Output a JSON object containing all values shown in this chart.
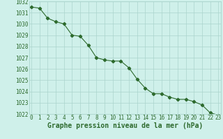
{
  "x": [
    0,
    1,
    2,
    3,
    4,
    5,
    6,
    7,
    8,
    9,
    10,
    11,
    12,
    13,
    14,
    15,
    16,
    17,
    18,
    19,
    20,
    21,
    22,
    23
  ],
  "y": [
    1031.5,
    1031.4,
    1030.5,
    1030.2,
    1030.0,
    1029.0,
    1028.9,
    1028.1,
    1027.0,
    1026.8,
    1026.7,
    1026.7,
    1026.1,
    1025.1,
    1024.3,
    1023.8,
    1023.8,
    1023.5,
    1023.3,
    1023.3,
    1023.1,
    1022.8,
    1022.1,
    1021.9
  ],
  "ylim": [
    1022,
    1032
  ],
  "xlim": [
    -0.3,
    23.3
  ],
  "yticks": [
    1022,
    1023,
    1024,
    1025,
    1026,
    1027,
    1028,
    1029,
    1030,
    1031,
    1032
  ],
  "xticks": [
    0,
    1,
    2,
    3,
    4,
    5,
    6,
    7,
    8,
    9,
    10,
    11,
    12,
    13,
    14,
    15,
    16,
    17,
    18,
    19,
    20,
    21,
    22,
    23
  ],
  "xlabel": "Graphe pression niveau de la mer (hPa)",
  "line_color": "#2d6a2d",
  "marker": "D",
  "marker_size": 2.2,
  "bg_color": "#cff0ea",
  "grid_color": "#aad4cc",
  "tick_label_fontsize": 5.5,
  "xlabel_fontsize": 7.0,
  "xlabel_fontweight": "bold"
}
